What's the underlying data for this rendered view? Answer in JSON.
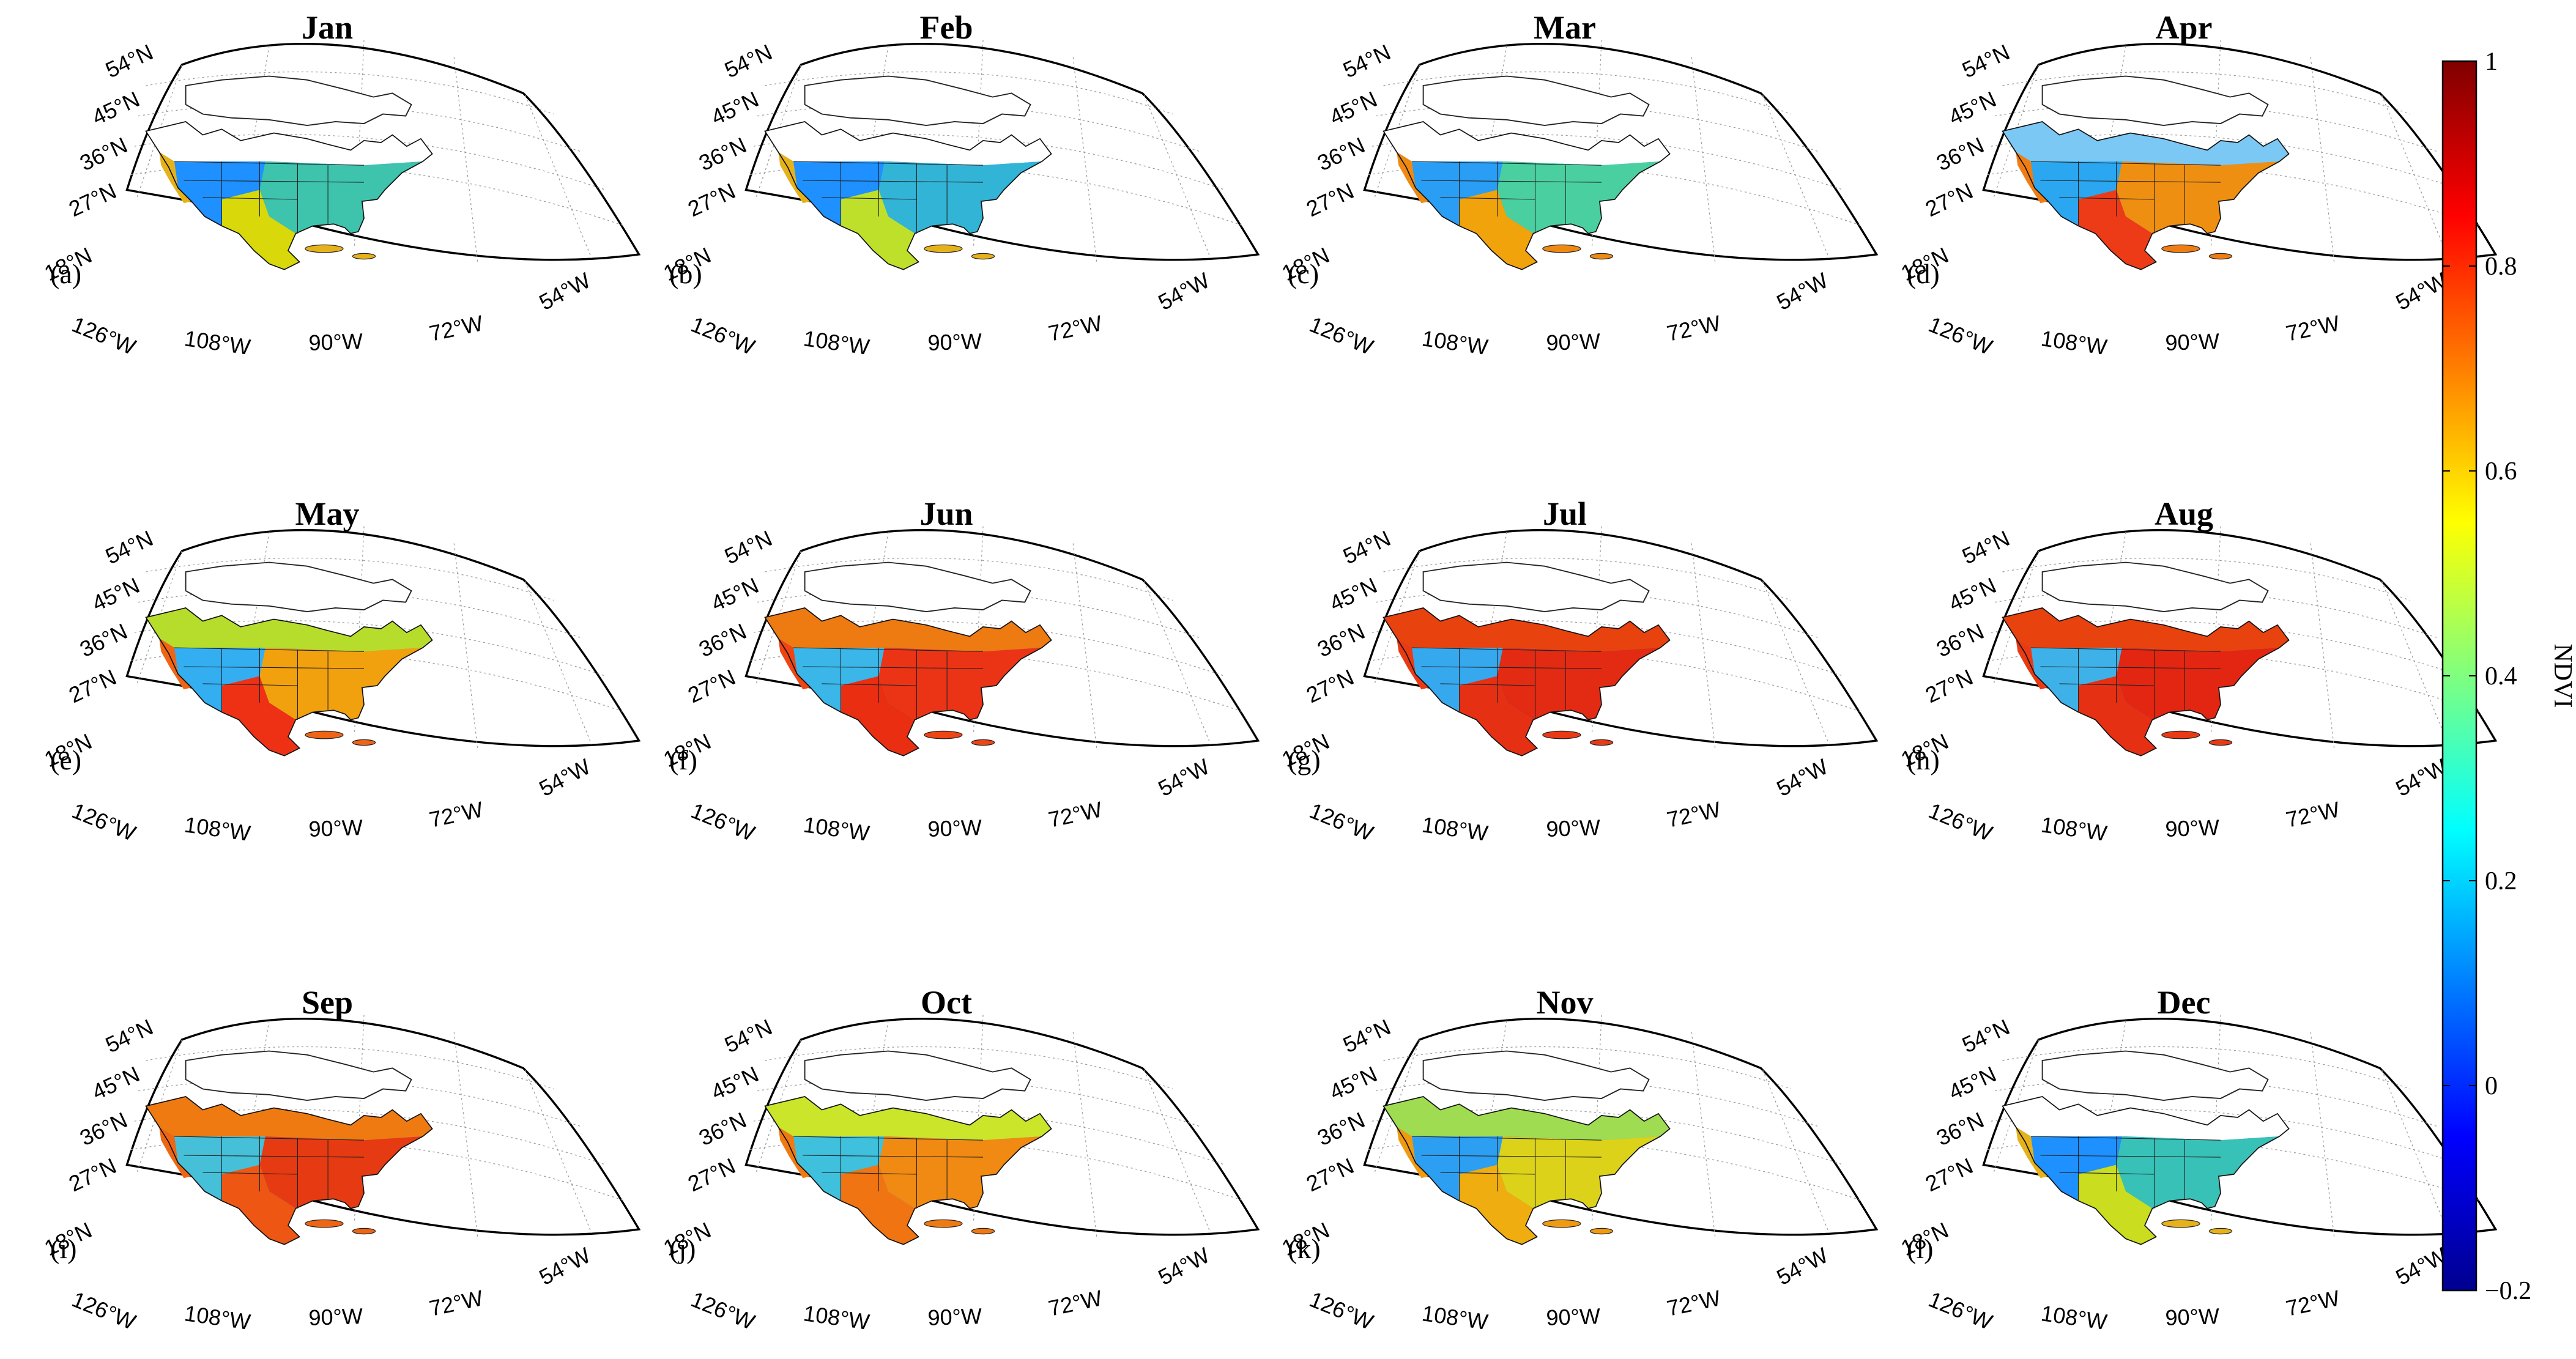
{
  "figure": {
    "variable": "NDVI",
    "panels": [
      {
        "title": "Jan",
        "label": "(a)",
        "colors": {
          "west": "#1e90ff",
          "south": "#d8d80a",
          "east": "#3ec3ad",
          "north": "#ffffff",
          "coast": "#e6b21b"
        }
      },
      {
        "title": "Feb",
        "label": "(b)",
        "colors": {
          "west": "#1e90ff",
          "south": "#bfe02b",
          "east": "#32b4d6",
          "north": "#ffffff",
          "coast": "#e6b21b"
        }
      },
      {
        "title": "Mar",
        "label": "(c)",
        "colors": {
          "west": "#2a9df4",
          "south": "#f0a30a",
          "east": "#4ad0a0",
          "north": "#ffffff",
          "coast": "#ee8a12"
        }
      },
      {
        "title": "Apr",
        "label": "(d)",
        "colors": {
          "west": "#2aa7f0",
          "south": "#ee3b17",
          "east": "#ef8f12",
          "north": "#7cc8f4",
          "coast": "#f07d13"
        }
      },
      {
        "title": "May",
        "label": "(e)",
        "colors": {
          "west": "#33aef0",
          "south": "#ee3115",
          "east": "#f2a10e",
          "north": "#b6dd2b",
          "coast": "#f06515"
        }
      },
      {
        "title": "Jun",
        "label": "(f)",
        "colors": {
          "west": "#3ab6e8",
          "south": "#e92e12",
          "east": "#eb3415",
          "north": "#ee7a12",
          "coast": "#ee4514"
        }
      },
      {
        "title": "Jul",
        "label": "(g)",
        "colors": {
          "west": "#36a8ee",
          "south": "#e63014",
          "east": "#e32a12",
          "north": "#e8420f",
          "coast": "#ea3a14"
        }
      },
      {
        "title": "Aug",
        "label": "(h)",
        "colors": {
          "west": "#3eb2e8",
          "south": "#e63013",
          "east": "#e22611",
          "north": "#e8420f",
          "coast": "#ea3a14"
        }
      },
      {
        "title": "Sep",
        "label": "(i)",
        "colors": {
          "west": "#46c0d8",
          "south": "#ee5614",
          "east": "#e53a12",
          "north": "#f07a12",
          "coast": "#ee6514"
        }
      },
      {
        "title": "Oct",
        "label": "(j)",
        "colors": {
          "west": "#3fc0dc",
          "south": "#f07412",
          "east": "#f08a12",
          "north": "#cbe52a",
          "coast": "#f07a12"
        }
      },
      {
        "title": "Nov",
        "label": "(k)",
        "colors": {
          "west": "#2d9ff2",
          "south": "#f0ad10",
          "east": "#dcd21a",
          "north": "#9fdc52",
          "coast": "#f09a12"
        }
      },
      {
        "title": "Dec",
        "label": "(l)",
        "colors": {
          "west": "#1e90ff",
          "south": "#cadd1e",
          "east": "#38c1b6",
          "north": "#ffffff",
          "coast": "#e6b21b"
        }
      }
    ],
    "lat_labels": [
      "54°N",
      "45°N",
      "36°N",
      "27°N",
      "18°N"
    ],
    "lon_labels": [
      "126°W",
      "108°W",
      "90°W",
      "72°W",
      "54°W"
    ],
    "colorbar": {
      "label": "NDVI",
      "min": -0.2,
      "max": 1,
      "ticks": [
        {
          "value": 1,
          "label": "1"
        },
        {
          "value": 0.8,
          "label": "0.8"
        },
        {
          "value": 0.6,
          "label": "0.6"
        },
        {
          "value": 0.4,
          "label": "0.4"
        },
        {
          "value": 0.2,
          "label": "0.2"
        },
        {
          "value": 0,
          "label": "0"
        },
        {
          "value": -0.2,
          "label": "−0.2"
        }
      ],
      "stops": [
        "#00008f",
        "#0000ff",
        "#007fff",
        "#00ffff",
        "#7fff7f",
        "#ffff00",
        "#ff7f00",
        "#ff0000",
        "#7f0000"
      ]
    }
  }
}
